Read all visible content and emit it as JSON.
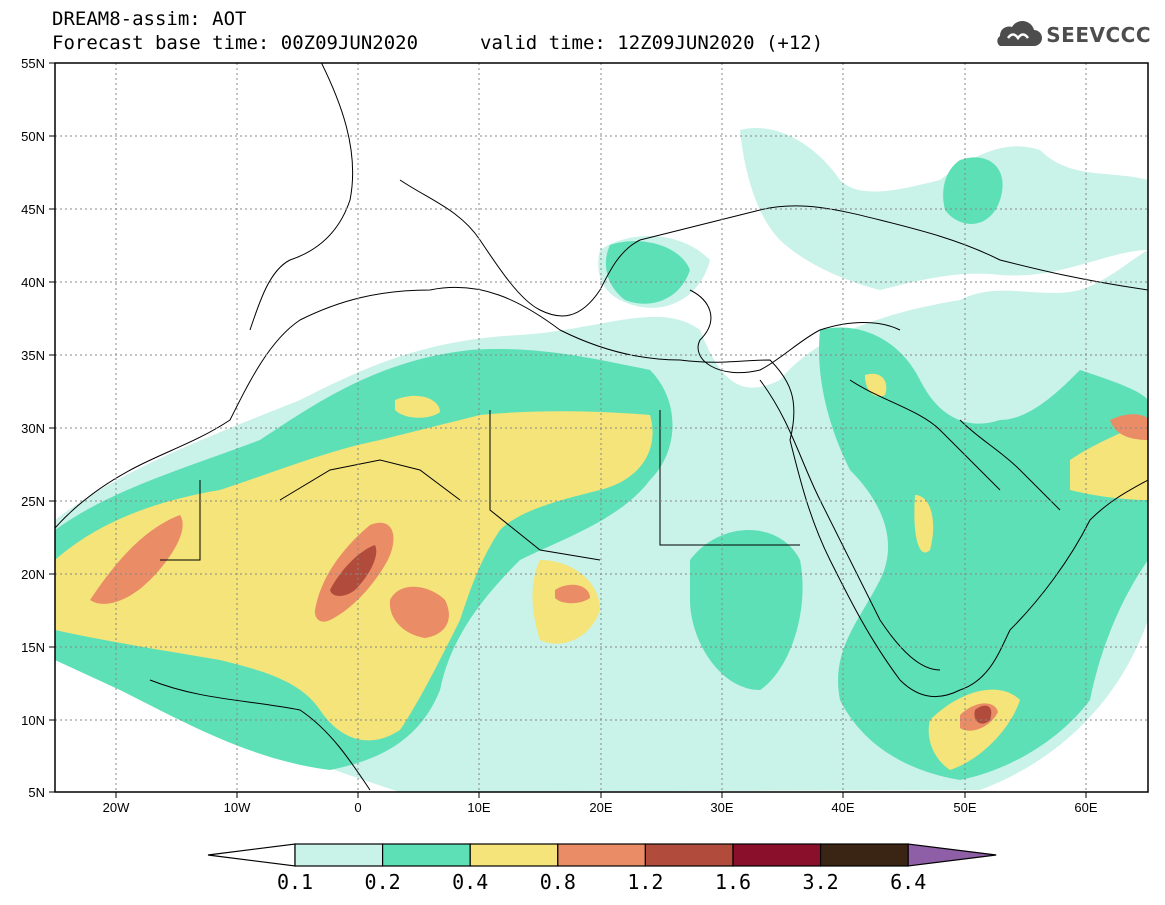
{
  "title": {
    "line1": "DREAM8-assim: AOT",
    "line2": "Forecast base time: 00Z09JUN2020",
    "line3": "valid time: 12Z09JUN2020 (+12)"
  },
  "logo": {
    "text": "SEEVCCC",
    "icon": "cloud-icon"
  },
  "axes": {
    "lat_labels": [
      "55N",
      "50N",
      "45N",
      "40N",
      "35N",
      "30N",
      "25N",
      "20N",
      "15N",
      "10N",
      "5N"
    ],
    "lon_labels": [
      "20W",
      "10W",
      "0",
      "10E",
      "20E",
      "30E",
      "40E",
      "50E",
      "60E"
    ]
  },
  "colorbar": {
    "labels": [
      "0.1",
      "0.2",
      "0.4",
      "0.8",
      "1.2",
      "1.6",
      "3.2",
      "6.4"
    ],
    "colors": [
      "#ffffff",
      "#c9f2e8",
      "#5ee0b6",
      "#f5e47a",
      "#ea8d66",
      "#b14c3c",
      "#8a0f2a",
      "#3a2413",
      "#8e5fa6"
    ]
  }
}
